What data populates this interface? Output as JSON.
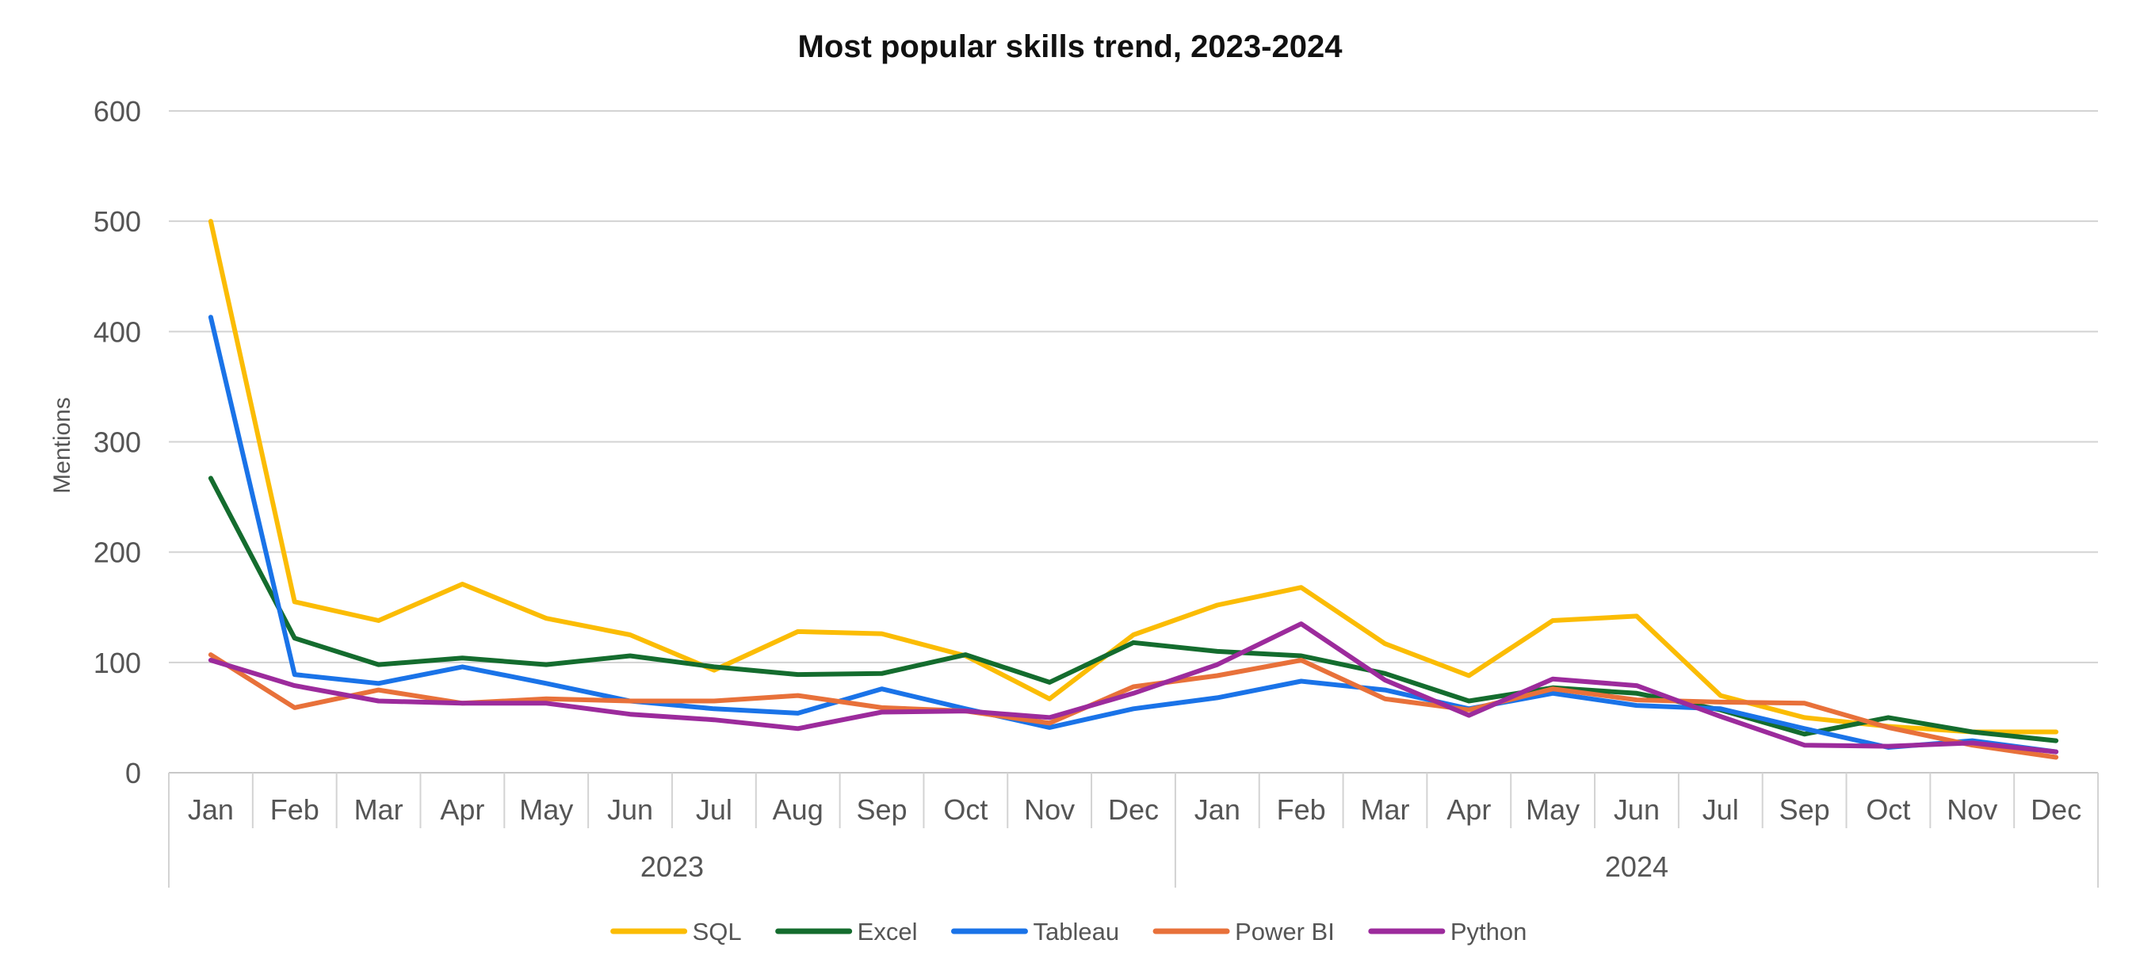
{
  "chart_data": {
    "type": "line",
    "title": "Most popular skills trend, 2023-2024",
    "xlabel": "",
    "ylabel": "Mentions",
    "ylim": [
      0,
      600
    ],
    "yticks": [
      "0",
      "100",
      "200",
      "300",
      "400",
      "500",
      "600"
    ],
    "grid": true,
    "legend_position": "bottom",
    "categories": [
      "Jan",
      "Feb",
      "Mar",
      "Apr",
      "May",
      "Jun",
      "Jul",
      "Aug",
      "Sep",
      "Oct",
      "Nov",
      "Dec",
      "Jan",
      "Feb",
      "Mar",
      "Apr",
      "May",
      "Jun",
      "Jul",
      "Sep",
      "Oct",
      "Nov",
      "Dec"
    ],
    "groups": [
      {
        "label": "2023",
        "count": 12
      },
      {
        "label": "2024",
        "count": 11
      }
    ],
    "series": [
      {
        "name": "SQL",
        "color": "#FBBC04",
        "values": [
          500,
          155,
          138,
          171,
          140,
          125,
          93,
          128,
          126,
          106,
          67,
          125,
          152,
          168,
          117,
          88,
          138,
          142,
          70,
          50,
          42,
          37,
          37
        ]
      },
      {
        "name": "Excel",
        "color": "#146C2E",
        "values": [
          267,
          122,
          98,
          104,
          98,
          106,
          96,
          89,
          90,
          107,
          82,
          118,
          110,
          106,
          90,
          65,
          77,
          72,
          57,
          35,
          50,
          37,
          29
        ]
      },
      {
        "name": "Tableau",
        "color": "#1A73E8",
        "values": [
          413,
          89,
          81,
          96,
          81,
          65,
          58,
          54,
          76,
          58,
          41,
          58,
          68,
          83,
          75,
          58,
          72,
          61,
          58,
          40,
          23,
          29,
          19
        ]
      },
      {
        "name": "Power BI",
        "color": "#E8713A",
        "values": [
          107,
          59,
          75,
          63,
          67,
          65,
          65,
          70,
          59,
          56,
          45,
          78,
          88,
          102,
          67,
          57,
          76,
          66,
          64,
          63,
          41,
          25,
          14
        ]
      },
      {
        "name": "Python",
        "color": "#9C2B9C",
        "values": [
          102,
          79,
          65,
          63,
          63,
          53,
          48,
          40,
          55,
          56,
          50,
          72,
          98,
          135,
          84,
          52,
          85,
          79,
          51,
          25,
          24,
          27,
          19
        ]
      }
    ]
  }
}
